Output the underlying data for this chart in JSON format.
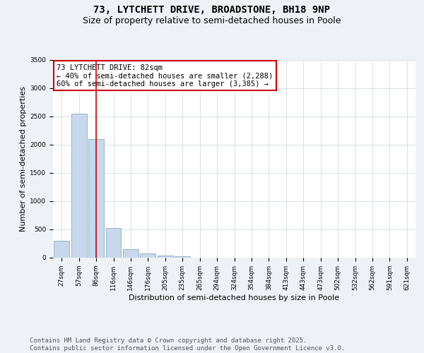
{
  "title": "73, LYTCHETT DRIVE, BROADSTONE, BH18 9NP",
  "subtitle": "Size of property relative to semi-detached houses in Poole",
  "xlabel": "Distribution of semi-detached houses by size in Poole",
  "ylabel": "Number of semi-detached properties",
  "categories": [
    "27sqm",
    "57sqm",
    "86sqm",
    "116sqm",
    "146sqm",
    "176sqm",
    "205sqm",
    "235sqm",
    "265sqm",
    "294sqm",
    "324sqm",
    "354sqm",
    "384sqm",
    "413sqm",
    "443sqm",
    "473sqm",
    "502sqm",
    "532sqm",
    "562sqm",
    "591sqm",
    "621sqm"
  ],
  "values": [
    300,
    2550,
    2100,
    520,
    150,
    80,
    40,
    20,
    5,
    0,
    0,
    0,
    0,
    0,
    0,
    0,
    0,
    0,
    0,
    0,
    0
  ],
  "bar_color": "#c8d8ec",
  "bar_edgecolor": "#8aaabf",
  "redline_index": 2,
  "redline_label": "73 LYTCHETT DRIVE: 82sqm",
  "annotation_line2": "← 40% of semi-detached houses are smaller (2,288)",
  "annotation_line3": "60% of semi-detached houses are larger (3,385) →",
  "ylim": [
    0,
    3500
  ],
  "yticks": [
    0,
    500,
    1000,
    1500,
    2000,
    2500,
    3000,
    3500
  ],
  "box_color": "#cc0000",
  "footer_line1": "Contains HM Land Registry data © Crown copyright and database right 2025.",
  "footer_line2": "Contains public sector information licensed under the Open Government Licence v3.0.",
  "title_fontsize": 10,
  "subtitle_fontsize": 9,
  "axis_label_fontsize": 8,
  "tick_fontsize": 6.5,
  "annotation_fontsize": 7.5,
  "footer_fontsize": 6.5,
  "bg_color": "#eef2f6",
  "plot_bg_color": "#ffffff",
  "grid_color": "#c8d4e0"
}
